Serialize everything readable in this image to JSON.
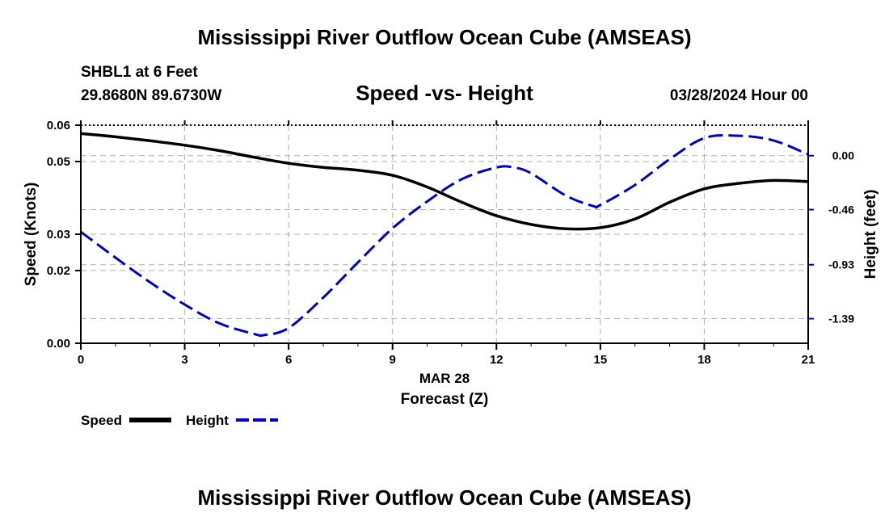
{
  "page": {
    "main_title": "Mississippi River Outflow Ocean Cube (AMSEAS)",
    "station": "SHBL1 at 6 Feet",
    "coordinates": "29.8680N  89.6730W",
    "subtitle": "Speed -vs- Height",
    "datetime": "03/28/2024 Hour 00",
    "repeat_title": "Mississippi River Outflow Ocean Cube (AMSEAS)"
  },
  "chart_data": {
    "type": "line",
    "title": "Speed -vs- Height",
    "xlabel_top": "MAR 28",
    "xlabel": "Forecast (Z)",
    "ylabel": "Speed (Knots)",
    "y2label": "Height (feet)",
    "xlim": [
      0,
      21
    ],
    "ylim": [
      0,
      0.06
    ],
    "y2lim": [
      -1.6,
      0.26
    ],
    "x_ticks": [
      0,
      3,
      6,
      9,
      12,
      15,
      18,
      21
    ],
    "x_tick_labels": [
      "0",
      "3",
      "6",
      "9",
      "12",
      "15",
      "18",
      "21"
    ],
    "y_ticks": [
      0,
      0.02,
      0.03,
      0.05,
      0.06
    ],
    "y_tick_labels": [
      "0.00",
      "0.02",
      "0.03",
      "0.05",
      "0.06"
    ],
    "y2_ticks": [
      0.0,
      -0.46,
      -0.93,
      -1.39
    ],
    "y2_tick_labels": [
      "0.00",
      "-0.46",
      "-0.93",
      "-1.39"
    ],
    "grid": true,
    "legend": [
      "Speed",
      "Height"
    ],
    "legend_position": "bottom-left",
    "series": [
      {
        "name": "Speed",
        "axis": "left",
        "color": "#000000",
        "style": "solid",
        "x": [
          0,
          1,
          2,
          3,
          4,
          5,
          6,
          7,
          8,
          9,
          10,
          11,
          12,
          13,
          14,
          15,
          16,
          17,
          18,
          19,
          20,
          21
        ],
        "values": [
          0.0577,
          0.0568,
          0.0557,
          0.0545,
          0.053,
          0.0512,
          0.0495,
          0.0484,
          0.0476,
          0.0462,
          0.043,
          0.0388,
          0.0351,
          0.0327,
          0.0315,
          0.0318,
          0.0342,
          0.0388,
          0.0425,
          0.044,
          0.0448,
          0.0445
        ]
      },
      {
        "name": "Height",
        "axis": "right",
        "color": "#0000cc",
        "style": "dashed",
        "x": [
          0,
          1,
          2,
          3,
          4,
          5,
          5.3,
          6,
          7,
          8,
          9,
          10,
          11,
          12,
          12.5,
          13,
          14,
          14.8,
          15,
          16,
          17,
          18,
          19,
          20,
          21
        ],
        "values": [
          -0.65,
          -0.87,
          -1.08,
          -1.27,
          -1.43,
          -1.52,
          -1.53,
          -1.47,
          -1.21,
          -0.91,
          -0.62,
          -0.39,
          -0.2,
          -0.1,
          -0.1,
          -0.15,
          -0.34,
          -0.43,
          -0.42,
          -0.25,
          -0.03,
          0.15,
          0.17,
          0.13,
          0.01
        ]
      }
    ]
  },
  "colors": {
    "speed": "#000000",
    "height": "#0000cc",
    "grid": "#b0b0b0"
  }
}
